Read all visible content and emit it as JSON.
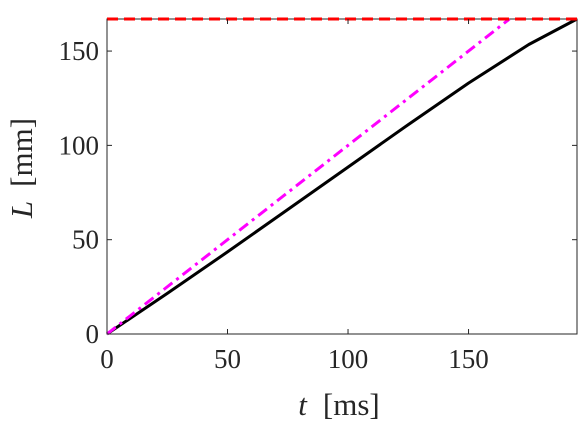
{
  "chart_data": {
    "type": "line",
    "xlabel_symbol": "t",
    "xlabel_unit": "[ms]",
    "ylabel_symbol": "L",
    "ylabel_unit": "[mm]",
    "xlim": [
      0,
      195
    ],
    "ylim": [
      0,
      167
    ],
    "grid": false,
    "x_ticks": [
      0,
      50,
      100,
      150
    ],
    "y_ticks": [
      0,
      50,
      100,
      150
    ],
    "x_tick_labels": [
      "0",
      "50",
      "100",
      "150"
    ],
    "y_tick_labels": [
      "0",
      "50",
      "100",
      "150"
    ],
    "series": [
      {
        "style": "solid",
        "color": "#000000",
        "x": [
          0,
          25,
          50,
          75,
          100,
          125,
          150,
          175,
          195
        ],
        "y": [
          0,
          21.5,
          43.5,
          66,
          88.5,
          111,
          133,
          153.5,
          167
        ]
      },
      {
        "style": "dashdot",
        "color": "#ff00ff",
        "x": [
          0,
          167
        ],
        "y": [
          0,
          167
        ]
      },
      {
        "style": "dashed",
        "color": "#ff0000",
        "x": [
          0,
          195
        ],
        "y": [
          167,
          167
        ]
      }
    ]
  }
}
